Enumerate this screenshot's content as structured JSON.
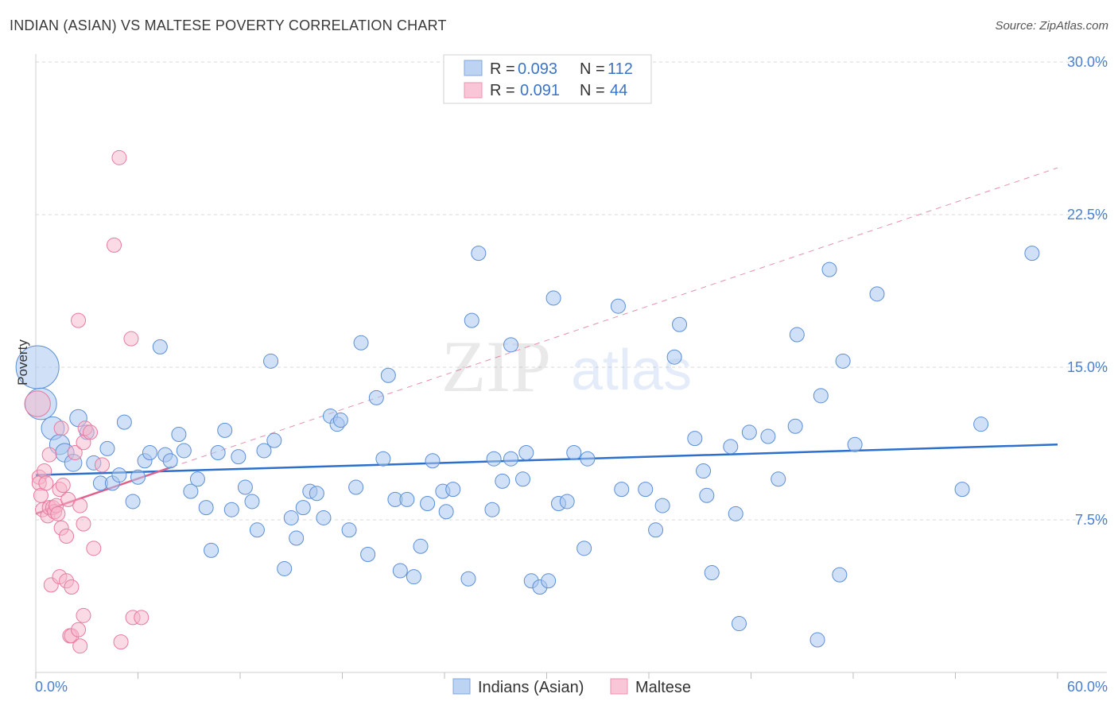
{
  "header": {
    "title": "INDIAN (ASIAN) VS MALTESE POVERTY CORRELATION CHART",
    "source": "Source: ZipAtlas.com"
  },
  "watermark": {
    "zip": "ZIP",
    "atlas": "atlas"
  },
  "colors": {
    "blue": "#5b8fd6",
    "blue_fill": "#a9c7ef",
    "blue_line": "#2d6fcc",
    "pink": "#e87aa0",
    "pink_fill": "#f5b5c9",
    "pink_line": "#e0608c",
    "grid": "#d9d9d9",
    "tick_text": "#4a7fd0"
  },
  "legend_top": {
    "rows": [
      {
        "r_label": "R =",
        "r_value": "0.093",
        "n_label": "N =",
        "n_value": "112",
        "series": "blue"
      },
      {
        "r_label": "R =",
        "r_value": "0.091",
        "n_label": "N =",
        "n_value": "44",
        "series": "pink"
      }
    ]
  },
  "legend_bottom": {
    "items": [
      {
        "label": "Indians (Asian)",
        "series": "blue"
      },
      {
        "label": "Maltese",
        "series": "pink"
      }
    ]
  },
  "chart_data": {
    "type": "scatter",
    "title": "INDIAN (ASIAN) VS MALTESE POVERTY CORRELATION CHART",
    "xlabel": "",
    "ylabel": "Poverty",
    "xlim": [
      0,
      60
    ],
    "ylim": [
      0,
      30
    ],
    "x_tick_labels": [
      "0.0%",
      "60.0%"
    ],
    "y_ticks": [
      7.5,
      15.0,
      22.5,
      30.0
    ],
    "y_tick_labels": [
      "7.5%",
      "15.0%",
      "22.5%",
      "30.0%"
    ],
    "grid": true,
    "series": [
      {
        "name": "Indians (Asian)",
        "color": "blue",
        "trend": {
          "x": [
            0,
            60
          ],
          "y": [
            9.7,
            11.2
          ],
          "style": "solid"
        },
        "points": [
          {
            "x": 0.1,
            "y": 15.0,
            "s": 3
          },
          {
            "x": 0.3,
            "y": 13.2,
            "s": 2.2
          },
          {
            "x": 1.0,
            "y": 12.0,
            "s": 1.6
          },
          {
            "x": 1.4,
            "y": 11.2,
            "s": 1.4
          },
          {
            "x": 1.7,
            "y": 10.8,
            "s": 1.3
          },
          {
            "x": 2.2,
            "y": 10.3,
            "s": 1.2
          },
          {
            "x": 2.5,
            "y": 12.5,
            "s": 1.2
          },
          {
            "x": 3.0,
            "y": 11.8,
            "s": 1
          },
          {
            "x": 3.4,
            "y": 10.3,
            "s": 1
          },
          {
            "x": 3.8,
            "y": 9.3,
            "s": 1
          },
          {
            "x": 4.2,
            "y": 11.0,
            "s": 1
          },
          {
            "x": 4.5,
            "y": 9.3,
            "s": 1
          },
          {
            "x": 4.9,
            "y": 9.7,
            "s": 1
          },
          {
            "x": 5.2,
            "y": 12.3,
            "s": 1
          },
          {
            "x": 5.7,
            "y": 8.4,
            "s": 1
          },
          {
            "x": 6.0,
            "y": 9.6,
            "s": 1
          },
          {
            "x": 6.4,
            "y": 10.4,
            "s": 1
          },
          {
            "x": 6.7,
            "y": 10.8,
            "s": 1
          },
          {
            "x": 7.3,
            "y": 16.0,
            "s": 1
          },
          {
            "x": 7.6,
            "y": 10.7,
            "s": 1
          },
          {
            "x": 7.9,
            "y": 10.4,
            "s": 1
          },
          {
            "x": 8.4,
            "y": 11.7,
            "s": 1
          },
          {
            "x": 8.7,
            "y": 10.9,
            "s": 1
          },
          {
            "x": 9.1,
            "y": 8.9,
            "s": 1
          },
          {
            "x": 9.5,
            "y": 9.5,
            "s": 1
          },
          {
            "x": 10.0,
            "y": 8.1,
            "s": 1
          },
          {
            "x": 10.3,
            "y": 6.0,
            "s": 1
          },
          {
            "x": 10.7,
            "y": 10.8,
            "s": 1
          },
          {
            "x": 11.1,
            "y": 11.9,
            "s": 1
          },
          {
            "x": 11.5,
            "y": 8.0,
            "s": 1
          },
          {
            "x": 11.9,
            "y": 10.6,
            "s": 1
          },
          {
            "x": 12.3,
            "y": 9.1,
            "s": 1
          },
          {
            "x": 12.7,
            "y": 8.4,
            "s": 1
          },
          {
            "x": 13.0,
            "y": 7.0,
            "s": 1
          },
          {
            "x": 13.4,
            "y": 10.9,
            "s": 1
          },
          {
            "x": 13.8,
            "y": 15.3,
            "s": 1
          },
          {
            "x": 14.0,
            "y": 11.4,
            "s": 1
          },
          {
            "x": 14.6,
            "y": 5.1,
            "s": 1
          },
          {
            "x": 15.0,
            "y": 7.6,
            "s": 1
          },
          {
            "x": 15.3,
            "y": 6.6,
            "s": 1
          },
          {
            "x": 15.7,
            "y": 8.1,
            "s": 1
          },
          {
            "x": 16.1,
            "y": 8.9,
            "s": 1
          },
          {
            "x": 16.5,
            "y": 8.8,
            "s": 1
          },
          {
            "x": 16.9,
            "y": 7.6,
            "s": 1
          },
          {
            "x": 17.3,
            "y": 12.6,
            "s": 1
          },
          {
            "x": 17.7,
            "y": 12.2,
            "s": 1
          },
          {
            "x": 17.9,
            "y": 12.4,
            "s": 1
          },
          {
            "x": 18.4,
            "y": 7.0,
            "s": 1
          },
          {
            "x": 18.8,
            "y": 9.1,
            "s": 1
          },
          {
            "x": 19.1,
            "y": 16.2,
            "s": 1
          },
          {
            "x": 19.5,
            "y": 5.8,
            "s": 1
          },
          {
            "x": 20.0,
            "y": 13.5,
            "s": 1
          },
          {
            "x": 20.4,
            "y": 10.5,
            "s": 1
          },
          {
            "x": 20.7,
            "y": 14.6,
            "s": 1
          },
          {
            "x": 21.1,
            "y": 8.5,
            "s": 1
          },
          {
            "x": 21.4,
            "y": 5.0,
            "s": 1
          },
          {
            "x": 21.8,
            "y": 8.5,
            "s": 1
          },
          {
            "x": 22.2,
            "y": 4.7,
            "s": 1
          },
          {
            "x": 22.6,
            "y": 6.2,
            "s": 1
          },
          {
            "x": 23.0,
            "y": 8.3,
            "s": 1
          },
          {
            "x": 23.3,
            "y": 10.4,
            "s": 1
          },
          {
            "x": 23.9,
            "y": 8.9,
            "s": 1
          },
          {
            "x": 24.1,
            "y": 7.9,
            "s": 1
          },
          {
            "x": 24.5,
            "y": 9.0,
            "s": 1
          },
          {
            "x": 25.4,
            "y": 4.6,
            "s": 1
          },
          {
            "x": 25.6,
            "y": 17.3,
            "s": 1
          },
          {
            "x": 26.0,
            "y": 20.6,
            "s": 1
          },
          {
            "x": 26.8,
            "y": 8.0,
            "s": 1
          },
          {
            "x": 26.9,
            "y": 10.5,
            "s": 1
          },
          {
            "x": 27.4,
            "y": 9.4,
            "s": 1
          },
          {
            "x": 27.9,
            "y": 16.1,
            "s": 1
          },
          {
            "x": 27.9,
            "y": 10.5,
            "s": 1
          },
          {
            "x": 28.6,
            "y": 9.5,
            "s": 1
          },
          {
            "x": 28.8,
            "y": 10.8,
            "s": 1
          },
          {
            "x": 29.1,
            "y": 4.5,
            "s": 1
          },
          {
            "x": 29.6,
            "y": 4.2,
            "s": 1
          },
          {
            "x": 30.1,
            "y": 4.5,
            "s": 1
          },
          {
            "x": 30.4,
            "y": 18.4,
            "s": 1
          },
          {
            "x": 30.7,
            "y": 8.3,
            "s": 1
          },
          {
            "x": 31.2,
            "y": 8.4,
            "s": 1
          },
          {
            "x": 31.6,
            "y": 10.8,
            "s": 1
          },
          {
            "x": 32.2,
            "y": 6.1,
            "s": 1
          },
          {
            "x": 32.4,
            "y": 10.5,
            "s": 1
          },
          {
            "x": 34.2,
            "y": 18.0,
            "s": 1
          },
          {
            "x": 34.4,
            "y": 9.0,
            "s": 1
          },
          {
            "x": 35.8,
            "y": 9.0,
            "s": 1
          },
          {
            "x": 36.4,
            "y": 7.0,
            "s": 1
          },
          {
            "x": 36.8,
            "y": 8.2,
            "s": 1
          },
          {
            "x": 37.5,
            "y": 15.5,
            "s": 1
          },
          {
            "x": 37.8,
            "y": 17.1,
            "s": 1
          },
          {
            "x": 38.7,
            "y": 11.5,
            "s": 1
          },
          {
            "x": 39.2,
            "y": 9.9,
            "s": 1
          },
          {
            "x": 39.4,
            "y": 8.7,
            "s": 1
          },
          {
            "x": 39.7,
            "y": 4.9,
            "s": 1
          },
          {
            "x": 40.8,
            "y": 11.1,
            "s": 1
          },
          {
            "x": 41.1,
            "y": 7.8,
            "s": 1
          },
          {
            "x": 41.3,
            "y": 2.4,
            "s": 1
          },
          {
            "x": 41.9,
            "y": 11.8,
            "s": 1
          },
          {
            "x": 43.0,
            "y": 11.6,
            "s": 1
          },
          {
            "x": 43.6,
            "y": 9.5,
            "s": 1
          },
          {
            "x": 44.6,
            "y": 12.1,
            "s": 1
          },
          {
            "x": 44.7,
            "y": 16.6,
            "s": 1
          },
          {
            "x": 45.9,
            "y": 1.6,
            "s": 1
          },
          {
            "x": 46.1,
            "y": 13.6,
            "s": 1
          },
          {
            "x": 46.6,
            "y": 19.8,
            "s": 1
          },
          {
            "x": 47.2,
            "y": 4.8,
            "s": 1
          },
          {
            "x": 47.4,
            "y": 15.3,
            "s": 1
          },
          {
            "x": 48.1,
            "y": 11.2,
            "s": 1
          },
          {
            "x": 49.4,
            "y": 18.6,
            "s": 1
          },
          {
            "x": 54.4,
            "y": 9.0,
            "s": 1
          },
          {
            "x": 55.5,
            "y": 12.2,
            "s": 1
          },
          {
            "x": 58.5,
            "y": 20.6,
            "s": 1
          }
        ]
      },
      {
        "name": "Maltese",
        "color": "pink",
        "trend": {
          "x": [
            0,
            8
          ],
          "y": [
            7.8,
            10.1
          ],
          "style": "solid",
          "extended": {
            "x": [
              8,
              60
            ],
            "y": [
              10.1,
              24.8
            ],
            "style": "dashed"
          }
        },
        "points": [
          {
            "x": 0.1,
            "y": 13.2,
            "s": 1.8
          },
          {
            "x": 0.2,
            "y": 9.6,
            "s": 1
          },
          {
            "x": 0.2,
            "y": 9.3,
            "s": 1
          },
          {
            "x": 0.3,
            "y": 8.7,
            "s": 1
          },
          {
            "x": 0.4,
            "y": 8.0,
            "s": 1
          },
          {
            "x": 0.5,
            "y": 9.9,
            "s": 1
          },
          {
            "x": 0.6,
            "y": 9.3,
            "s": 1
          },
          {
            "x": 0.7,
            "y": 7.7,
            "s": 1
          },
          {
            "x": 0.8,
            "y": 8.1,
            "s": 1
          },
          {
            "x": 0.8,
            "y": 10.7,
            "s": 1
          },
          {
            "x": 0.9,
            "y": 4.3,
            "s": 1
          },
          {
            "x": 1.0,
            "y": 8.1,
            "s": 1
          },
          {
            "x": 1.1,
            "y": 7.9,
            "s": 1
          },
          {
            "x": 1.2,
            "y": 8.2,
            "s": 1
          },
          {
            "x": 1.3,
            "y": 7.8,
            "s": 1
          },
          {
            "x": 1.4,
            "y": 4.7,
            "s": 1
          },
          {
            "x": 1.4,
            "y": 9.0,
            "s": 1
          },
          {
            "x": 1.5,
            "y": 7.1,
            "s": 1
          },
          {
            "x": 1.5,
            "y": 12.0,
            "s": 1
          },
          {
            "x": 1.6,
            "y": 9.2,
            "s": 1
          },
          {
            "x": 1.8,
            "y": 4.5,
            "s": 1
          },
          {
            "x": 1.8,
            "y": 6.7,
            "s": 1
          },
          {
            "x": 1.9,
            "y": 8.5,
            "s": 1
          },
          {
            "x": 2.0,
            "y": 1.8,
            "s": 1
          },
          {
            "x": 2.1,
            "y": 4.2,
            "s": 1
          },
          {
            "x": 2.1,
            "y": 1.8,
            "s": 1
          },
          {
            "x": 2.3,
            "y": 10.8,
            "s": 1
          },
          {
            "x": 2.5,
            "y": 2.1,
            "s": 1
          },
          {
            "x": 2.5,
            "y": 17.3,
            "s": 1
          },
          {
            "x": 2.6,
            "y": 1.3,
            "s": 1
          },
          {
            "x": 2.6,
            "y": 8.2,
            "s": 1
          },
          {
            "x": 2.8,
            "y": 2.8,
            "s": 1
          },
          {
            "x": 2.8,
            "y": 11.3,
            "s": 1
          },
          {
            "x": 2.8,
            "y": 7.3,
            "s": 1
          },
          {
            "x": 2.9,
            "y": 12.0,
            "s": 1
          },
          {
            "x": 3.2,
            "y": 11.8,
            "s": 1
          },
          {
            "x": 3.4,
            "y": 6.1,
            "s": 1
          },
          {
            "x": 3.9,
            "y": 10.2,
            "s": 1
          },
          {
            "x": 4.6,
            "y": 21.0,
            "s": 1
          },
          {
            "x": 4.9,
            "y": 25.3,
            "s": 1
          },
          {
            "x": 5.0,
            "y": 1.5,
            "s": 1
          },
          {
            "x": 5.6,
            "y": 16.4,
            "s": 1
          },
          {
            "x": 5.7,
            "y": 2.7,
            "s": 1
          },
          {
            "x": 6.2,
            "y": 2.7,
            "s": 1
          }
        ]
      }
    ]
  }
}
